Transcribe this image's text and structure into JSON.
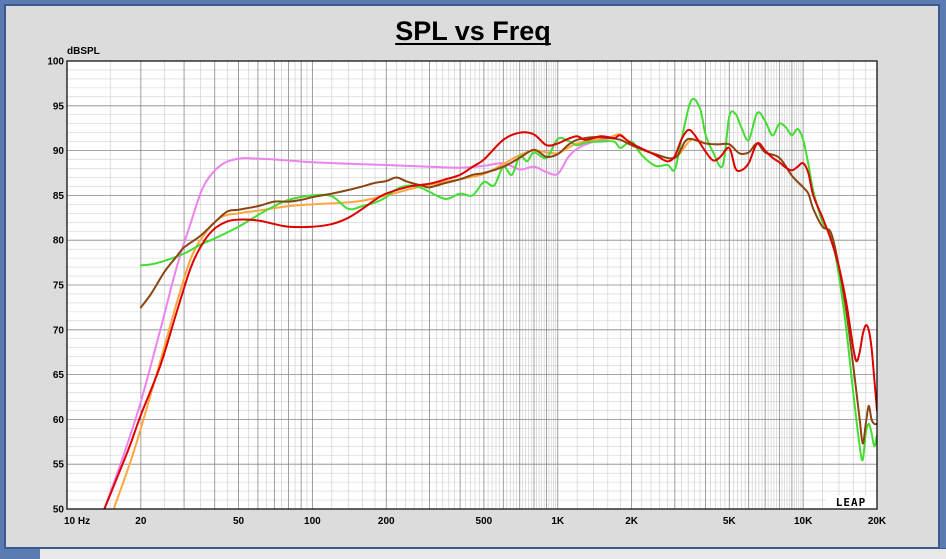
{
  "chart_data": {
    "type": "line",
    "title": "SPL vs Freq",
    "ylabel": "dBSPL",
    "xscale": "log",
    "xlim": [
      10,
      20000
    ],
    "ylim": [
      50,
      100
    ],
    "grid": true,
    "x_tick_labels": [
      {
        "x": 10,
        "label": "10 Hz"
      },
      {
        "x": 20,
        "label": "20"
      },
      {
        "x": 50,
        "label": "50"
      },
      {
        "x": 100,
        "label": "100"
      },
      {
        "x": 200,
        "label": "200"
      },
      {
        "x": 500,
        "label": "500"
      },
      {
        "x": 1000,
        "label": "1K"
      },
      {
        "x": 2000,
        "label": "2K"
      },
      {
        "x": 5000,
        "label": "5K"
      },
      {
        "x": 10000,
        "label": "10K"
      },
      {
        "x": 20000,
        "label": "20K"
      }
    ],
    "y_ticks": [
      50,
      55,
      60,
      65,
      70,
      75,
      80,
      85,
      90,
      95,
      100
    ],
    "brand": "LEAP",
    "series": [
      {
        "color": "#ee82ee",
        "points": [
          [
            14.2,
            50
          ],
          [
            17,
            56
          ],
          [
            20,
            62
          ],
          [
            24,
            70
          ],
          [
            28,
            77
          ],
          [
            32,
            82
          ],
          [
            36,
            86
          ],
          [
            42,
            88.3
          ],
          [
            50,
            89.1
          ],
          [
            60,
            89.1
          ],
          [
            80,
            88.9
          ],
          [
            100,
            88.7
          ],
          [
            150,
            88.5
          ],
          [
            200,
            88.4
          ],
          [
            300,
            88.2
          ],
          [
            400,
            88.1
          ],
          [
            500,
            88.3
          ],
          [
            600,
            88.6
          ],
          [
            700,
            87.9
          ],
          [
            800,
            88.2
          ],
          [
            900,
            87.6
          ],
          [
            1000,
            87.4
          ],
          [
            1100,
            89.2
          ],
          [
            1200,
            90.2
          ],
          [
            1400,
            91.0
          ],
          [
            1600,
            91.2
          ]
        ]
      },
      {
        "color": "#ffa640",
        "points": [
          [
            15.5,
            50
          ],
          [
            18,
            55
          ],
          [
            20,
            59
          ],
          [
            24,
            66.5
          ],
          [
            28,
            73
          ],
          [
            32,
            78
          ],
          [
            36,
            80.5
          ],
          [
            42,
            82.5
          ],
          [
            50,
            83
          ],
          [
            60,
            83.3
          ],
          [
            80,
            83.8
          ],
          [
            100,
            84
          ],
          [
            150,
            84.3
          ],
          [
            200,
            85
          ],
          [
            250,
            85.7
          ],
          [
            300,
            86.2
          ],
          [
            400,
            86.8
          ],
          [
            500,
            87.4
          ],
          [
            600,
            88.5
          ],
          [
            700,
            89.5
          ],
          [
            800,
            90.0
          ],
          [
            900,
            89.8
          ],
          [
            1000,
            89.7
          ],
          [
            1100,
            90.3
          ],
          [
            1200,
            90.8
          ],
          [
            1400,
            91.2
          ],
          [
            1600,
            91.4
          ],
          [
            1800,
            91.8
          ],
          [
            2000,
            90.6
          ],
          [
            2500,
            89.6
          ],
          [
            3000,
            89.2
          ],
          [
            3500,
            91.2
          ],
          [
            4000,
            90.8
          ]
        ]
      },
      {
        "color": "#44dd33",
        "points": [
          [
            20,
            77.2
          ],
          [
            22,
            77.3
          ],
          [
            25,
            77.7
          ],
          [
            30,
            78.5
          ],
          [
            35,
            79.5
          ],
          [
            40,
            80.2
          ],
          [
            50,
            81.5
          ],
          [
            60,
            82.8
          ],
          [
            70,
            83.8
          ],
          [
            80,
            84.5
          ],
          [
            100,
            85
          ],
          [
            120,
            84.9
          ],
          [
            140,
            83.5
          ],
          [
            160,
            83.8
          ],
          [
            180,
            84.2
          ],
          [
            200,
            84.8
          ],
          [
            220,
            85.7
          ],
          [
            250,
            86.1
          ],
          [
            280,
            85.8
          ],
          [
            300,
            85.4
          ],
          [
            350,
            84.6
          ],
          [
            400,
            85.2
          ],
          [
            450,
            85
          ],
          [
            500,
            86.5
          ],
          [
            550,
            86.1
          ],
          [
            600,
            88.2
          ],
          [
            650,
            87.3
          ],
          [
            700,
            89.4
          ],
          [
            750,
            88.8
          ],
          [
            800,
            89.8
          ],
          [
            900,
            89.2
          ],
          [
            1000,
            91.3
          ],
          [
            1100,
            91.1
          ],
          [
            1200,
            90.6
          ],
          [
            1300,
            90.9
          ],
          [
            1500,
            91.0
          ],
          [
            1700,
            91.0
          ],
          [
            1800,
            90.3
          ],
          [
            2000,
            91.0
          ],
          [
            2200,
            89.5
          ],
          [
            2500,
            88.3
          ],
          [
            2800,
            88.4
          ],
          [
            3000,
            87.9
          ],
          [
            3200,
            91.4
          ],
          [
            3500,
            95.6
          ],
          [
            3800,
            94.7
          ],
          [
            4000,
            91.8
          ],
          [
            4300,
            89.8
          ],
          [
            4700,
            88.3
          ],
          [
            5000,
            93.8
          ],
          [
            5300,
            94.1
          ],
          [
            5600,
            92.6
          ],
          [
            6000,
            91.2
          ],
          [
            6500,
            94.2
          ],
          [
            7000,
            93.3
          ],
          [
            7500,
            91.7
          ],
          [
            8000,
            93.0
          ],
          [
            8500,
            92.6
          ],
          [
            9000,
            91.7
          ],
          [
            9500,
            92.4
          ],
          [
            10000,
            91.2
          ],
          [
            10500,
            88.5
          ],
          [
            11000,
            85.5
          ],
          [
            12000,
            82.0
          ],
          [
            13000,
            80.5
          ],
          [
            14000,
            76
          ],
          [
            15000,
            70
          ],
          [
            16000,
            63
          ],
          [
            17000,
            57
          ],
          [
            17500,
            55.5
          ],
          [
            18000,
            58.5
          ],
          [
            18500,
            59.5
          ],
          [
            19000,
            58.5
          ],
          [
            19500,
            57
          ],
          [
            20000,
            58.2
          ]
        ]
      },
      {
        "color": "#8b4513",
        "points": [
          [
            20,
            72.5
          ],
          [
            22,
            74
          ],
          [
            25,
            76.5
          ],
          [
            28,
            78.2
          ],
          [
            30,
            79.2
          ],
          [
            35,
            80.5
          ],
          [
            40,
            82
          ],
          [
            45,
            83.2
          ],
          [
            50,
            83.4
          ],
          [
            60,
            83.8
          ],
          [
            70,
            84.3
          ],
          [
            80,
            84.3
          ],
          [
            90,
            84.5
          ],
          [
            100,
            84.8
          ],
          [
            120,
            85.2
          ],
          [
            140,
            85.6
          ],
          [
            160,
            86
          ],
          [
            180,
            86.4
          ],
          [
            200,
            86.6
          ],
          [
            220,
            87.0
          ],
          [
            240,
            86.6
          ],
          [
            260,
            86.3
          ],
          [
            280,
            86.1
          ],
          [
            300,
            85.9
          ],
          [
            350,
            86.4
          ],
          [
            400,
            86.8
          ],
          [
            450,
            87.3
          ],
          [
            500,
            87.5
          ],
          [
            600,
            88.2
          ],
          [
            700,
            89.2
          ],
          [
            800,
            90.1
          ],
          [
            900,
            89.3
          ],
          [
            1000,
            89.6
          ],
          [
            1100,
            90.6
          ],
          [
            1200,
            91.2
          ],
          [
            1400,
            91.5
          ],
          [
            1600,
            91.4
          ],
          [
            1800,
            91.2
          ],
          [
            2000,
            90.6
          ],
          [
            2500,
            89.6
          ],
          [
            3000,
            89.2
          ],
          [
            3300,
            91
          ],
          [
            3500,
            91.3
          ],
          [
            4000,
            90.8
          ],
          [
            4500,
            90.7
          ],
          [
            5000,
            90.7
          ],
          [
            5500,
            89.7
          ],
          [
            6000,
            89.8
          ],
          [
            6500,
            90.8
          ],
          [
            7000,
            89.8
          ],
          [
            8000,
            89.2
          ],
          [
            9000,
            87.2
          ],
          [
            10000,
            85.9
          ],
          [
            10500,
            85.2
          ],
          [
            11000,
            83.5
          ],
          [
            12000,
            81.5
          ],
          [
            13000,
            80.8
          ],
          [
            14000,
            77
          ],
          [
            15000,
            72
          ],
          [
            16000,
            66
          ],
          [
            17000,
            60
          ],
          [
            17500,
            57.3
          ],
          [
            18000,
            59.5
          ],
          [
            18500,
            61.5
          ],
          [
            19000,
            60
          ],
          [
            19500,
            59.5
          ],
          [
            20000,
            59.5
          ]
        ]
      },
      {
        "color": "#dd0000",
        "points": [
          [
            14.2,
            50
          ],
          [
            16,
            53.5
          ],
          [
            18,
            57
          ],
          [
            20,
            60.5
          ],
          [
            24,
            66
          ],
          [
            28,
            72
          ],
          [
            32,
            77
          ],
          [
            36,
            79.8
          ],
          [
            40,
            81.3
          ],
          [
            45,
            82.1
          ],
          [
            50,
            82.3
          ],
          [
            60,
            82.2
          ],
          [
            70,
            81.8
          ],
          [
            80,
            81.5
          ],
          [
            100,
            81.5
          ],
          [
            120,
            81.8
          ],
          [
            140,
            82.5
          ],
          [
            160,
            83.5
          ],
          [
            180,
            84.5
          ],
          [
            200,
            85.2
          ],
          [
            250,
            86
          ],
          [
            300,
            86.3
          ],
          [
            350,
            86.8
          ],
          [
            400,
            87.3
          ],
          [
            450,
            88.2
          ],
          [
            500,
            89.0
          ],
          [
            600,
            91.2
          ],
          [
            700,
            92
          ],
          [
            800,
            91.8
          ],
          [
            900,
            90.6
          ],
          [
            1000,
            90.8
          ],
          [
            1100,
            91.3
          ],
          [
            1200,
            91.6
          ],
          [
            1300,
            91.2
          ],
          [
            1500,
            91.6
          ],
          [
            1700,
            91.4
          ],
          [
            1800,
            91.7
          ],
          [
            2000,
            90.8
          ],
          [
            2500,
            89.5
          ],
          [
            2800,
            88.8
          ],
          [
            3000,
            89.4
          ],
          [
            3200,
            91.3
          ],
          [
            3400,
            92.3
          ],
          [
            3600,
            91.8
          ],
          [
            4000,
            89.9
          ],
          [
            4300,
            88.9
          ],
          [
            4600,
            89.3
          ],
          [
            5000,
            90.3
          ],
          [
            5300,
            88.0
          ],
          [
            5600,
            87.8
          ],
          [
            6000,
            88.6
          ],
          [
            6500,
            90.8
          ],
          [
            7000,
            90
          ],
          [
            7500,
            89.2
          ],
          [
            8000,
            88.7
          ],
          [
            8500,
            88.1
          ],
          [
            9000,
            87.8
          ],
          [
            9500,
            88.2
          ],
          [
            10000,
            88.6
          ],
          [
            10500,
            87.5
          ],
          [
            11000,
            85
          ],
          [
            12000,
            82.5
          ],
          [
            13000,
            80
          ],
          [
            14000,
            77
          ],
          [
            15000,
            73
          ],
          [
            16000,
            68
          ],
          [
            16500,
            66.5
          ],
          [
            17000,
            67.5
          ],
          [
            17500,
            69.5
          ],
          [
            18000,
            70.5
          ],
          [
            18500,
            70
          ],
          [
            19000,
            68
          ],
          [
            19500,
            64.5
          ],
          [
            20000,
            61
          ]
        ]
      }
    ]
  }
}
